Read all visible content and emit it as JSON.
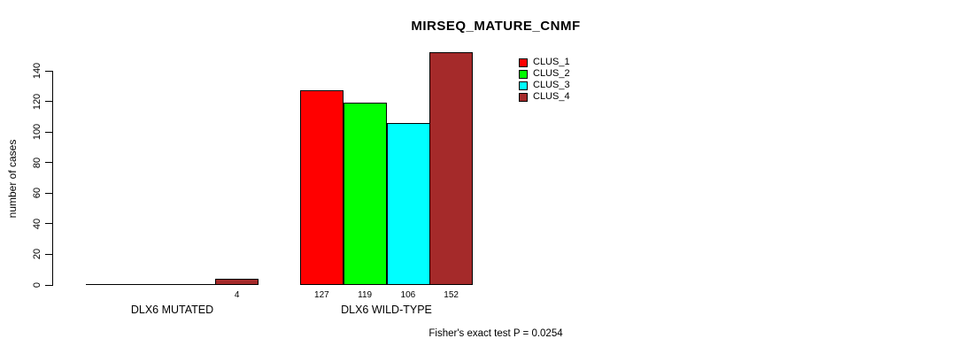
{
  "chart_data": {
    "type": "bar",
    "title": "MIRSEQ_MATURE_CNMF",
    "ylabel": "number of cases",
    "xlabel": "",
    "ylim": [
      0,
      140
    ],
    "yticks": [
      0,
      20,
      40,
      60,
      80,
      100,
      120,
      140
    ],
    "grid": false,
    "legend_position": "top-right-inside",
    "series": [
      {
        "name": "CLUS_1",
        "color": "#FF0000"
      },
      {
        "name": "CLUS_2",
        "color": "#00FF00"
      },
      {
        "name": "CLUS_3",
        "color": "#00FFFF"
      },
      {
        "name": "CLUS_4",
        "color": "#A52A2A"
      }
    ],
    "groups": [
      {
        "label": "DLX6 MUTATED",
        "values": [
          0,
          0,
          0,
          4
        ],
        "bar_labels": [
          "",
          "",
          "",
          "4"
        ]
      },
      {
        "label": "DLX6 WILD-TYPE",
        "values": [
          127,
          119,
          106,
          152
        ],
        "bar_labels": [
          "127",
          "119",
          "106",
          "152"
        ]
      }
    ],
    "footnote": "Fisher's exact test P = 0.0254"
  }
}
